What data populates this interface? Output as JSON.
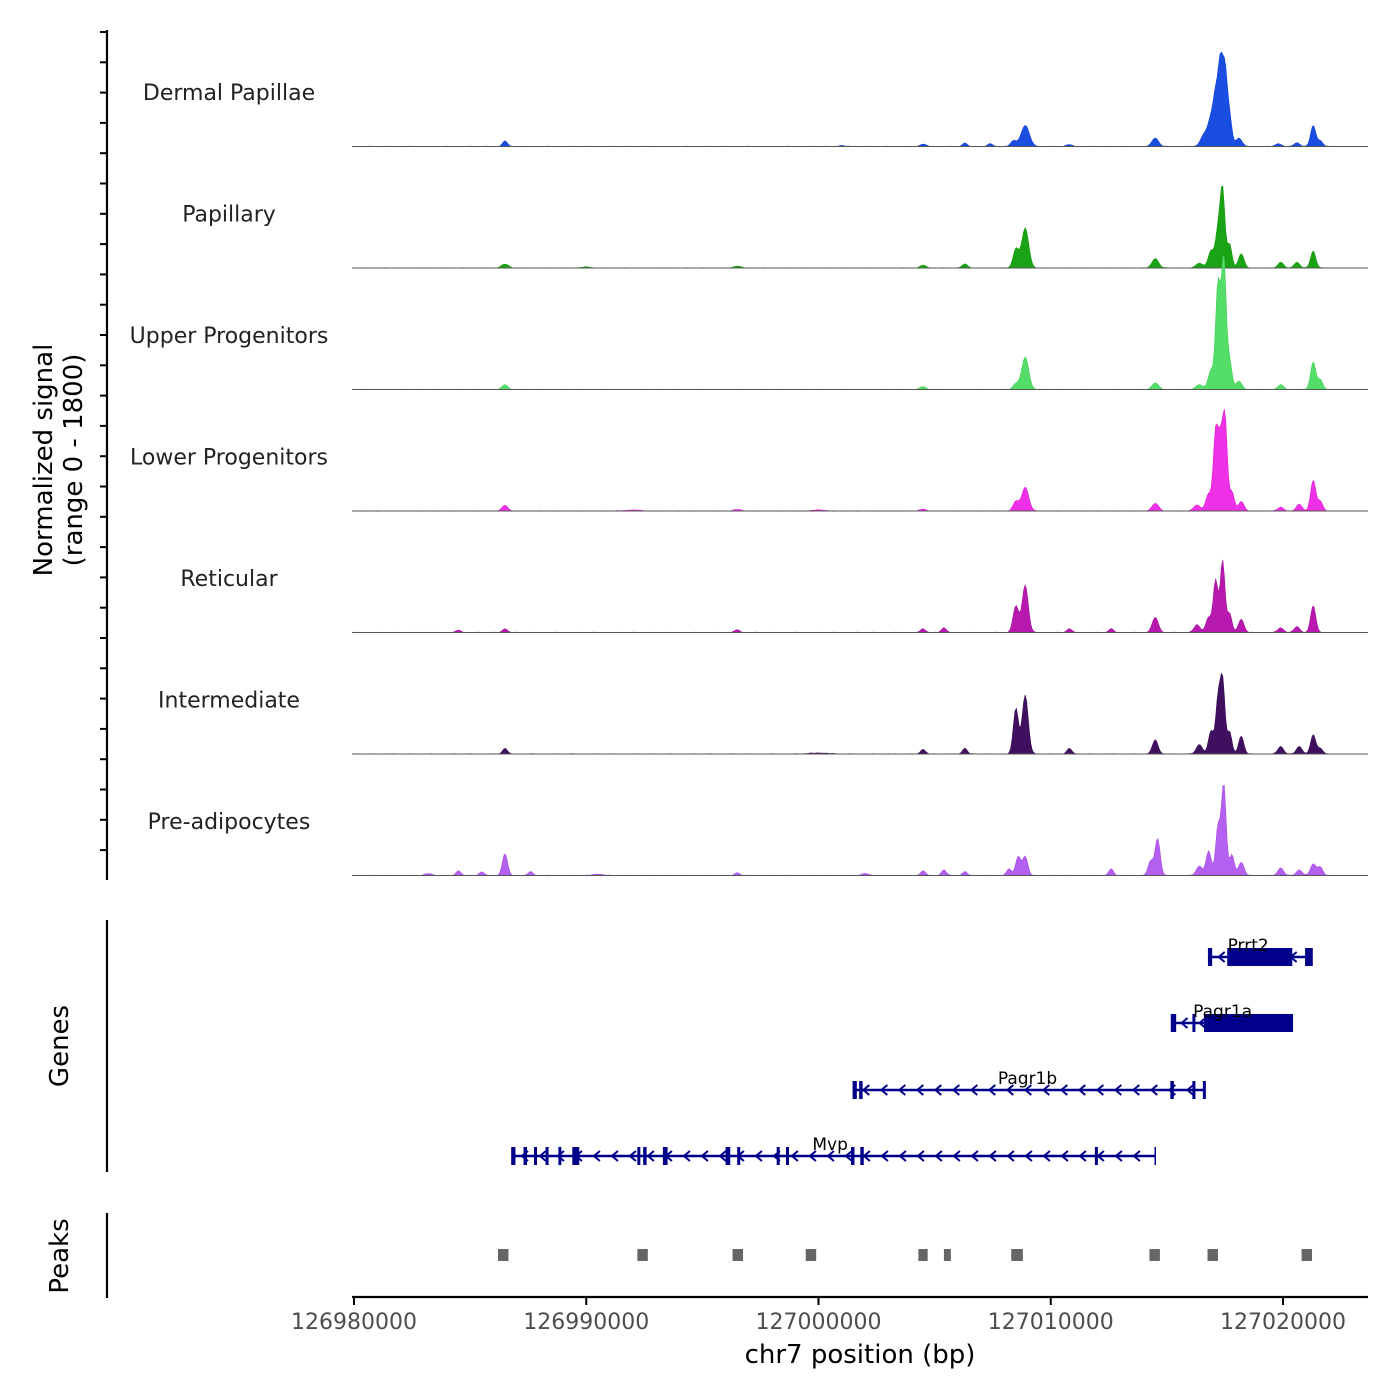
{
  "chart_data": {
    "type": "area",
    "title": "",
    "chromosome": "chr7",
    "xlabel": "chr7 position (bp)",
    "ylabel_line1": "Normalized signal",
    "ylabel_line2": "(range 0 - 1800)",
    "genes_label": "Genes",
    "peaks_label": "Peaks",
    "xlim": [
      126980000,
      127023500
    ],
    "ylim": [
      0,
      1800
    ],
    "x_ticks": [
      126980000,
      126990000,
      127000000,
      127010000,
      127020000
    ],
    "x_tick_labels": [
      "126980000",
      "126990000",
      "127000000",
      "127010000",
      "127020000"
    ],
    "tracks": [
      {
        "name": "Dermal Papillae",
        "color": "#1040d8",
        "fill": "#1a4ee0",
        "peaks": [
          [
            126986500,
            60,
            100
          ],
          [
            127001000,
            10,
            120
          ],
          [
            127004500,
            25,
            120
          ],
          [
            127006300,
            35,
            100
          ],
          [
            127007400,
            30,
            100
          ],
          [
            127008400,
            60,
            120
          ],
          [
            127008900,
            220,
            180
          ],
          [
            127010800,
            20,
            120
          ],
          [
            127014500,
            90,
            140
          ],
          [
            127016600,
            120,
            150
          ],
          [
            127016900,
            280,
            130
          ],
          [
            127017100,
            450,
            100
          ],
          [
            127017300,
            820,
            100
          ],
          [
            127017500,
            760,
            100
          ],
          [
            127017700,
            300,
            100
          ],
          [
            127018100,
            90,
            130
          ],
          [
            127019800,
            30,
            120
          ],
          [
            127020600,
            40,
            120
          ],
          [
            127021300,
            220,
            110
          ],
          [
            127021600,
            60,
            110
          ]
        ]
      },
      {
        "name": "Papillary",
        "color": "#159a10",
        "fill": "#1aa315",
        "peaks": [
          [
            126986500,
            40,
            150
          ],
          [
            126990000,
            10,
            200
          ],
          [
            126996500,
            20,
            150
          ],
          [
            127004500,
            30,
            120
          ],
          [
            127006300,
            40,
            120
          ],
          [
            127008500,
            200,
            120
          ],
          [
            127008900,
            420,
            150
          ],
          [
            127014500,
            100,
            140
          ],
          [
            127016400,
            50,
            150
          ],
          [
            127016900,
            180,
            120
          ],
          [
            127017200,
            380,
            110
          ],
          [
            127017400,
            800,
            100
          ],
          [
            127017700,
            250,
            100
          ],
          [
            127018200,
            150,
            120
          ],
          [
            127019900,
            60,
            120
          ],
          [
            127020600,
            60,
            120
          ],
          [
            127021300,
            180,
            110
          ]
        ]
      },
      {
        "name": "Upper Progenitors",
        "color": "#3fcf55",
        "fill": "#55dd6a",
        "peaks": [
          [
            126986500,
            50,
            120
          ],
          [
            127004500,
            30,
            120
          ],
          [
            127008500,
            60,
            120
          ],
          [
            127008900,
            340,
            150
          ],
          [
            127014500,
            70,
            140
          ],
          [
            127016400,
            50,
            150
          ],
          [
            127016900,
            200,
            120
          ],
          [
            127017200,
            1100,
            100
          ],
          [
            127017450,
            1380,
            100
          ],
          [
            127017700,
            300,
            100
          ],
          [
            127018100,
            90,
            120
          ],
          [
            127019900,
            50,
            120
          ],
          [
            127021300,
            290,
            110
          ],
          [
            127021600,
            100,
            110
          ]
        ]
      },
      {
        "name": "Lower Progenitors",
        "color": "#e010d8",
        "fill": "#ee30e6",
        "peaks": [
          [
            126986500,
            60,
            120
          ],
          [
            126992000,
            10,
            300
          ],
          [
            126996500,
            15,
            150
          ],
          [
            127000000,
            10,
            300
          ],
          [
            127004500,
            20,
            120
          ],
          [
            127008500,
            100,
            120
          ],
          [
            127008900,
            250,
            150
          ],
          [
            127014500,
            80,
            140
          ],
          [
            127016300,
            60,
            150
          ],
          [
            127016800,
            180,
            120
          ],
          [
            127017100,
            800,
            100
          ],
          [
            127017300,
            650,
            100
          ],
          [
            127017500,
            960,
            100
          ],
          [
            127017800,
            200,
            100
          ],
          [
            127018200,
            100,
            120
          ],
          [
            127019900,
            40,
            120
          ],
          [
            127020700,
            70,
            120
          ],
          [
            127021300,
            320,
            110
          ],
          [
            127021600,
            100,
            110
          ]
        ]
      },
      {
        "name": "Reticular",
        "color": "#a80fa0",
        "fill": "#b718ae",
        "peaks": [
          [
            126984500,
            25,
            100
          ],
          [
            126986500,
            40,
            100
          ],
          [
            126996500,
            30,
            100
          ],
          [
            127004500,
            40,
            100
          ],
          [
            127005400,
            50,
            100
          ],
          [
            127008500,
            280,
            120
          ],
          [
            127008900,
            500,
            130
          ],
          [
            127010800,
            40,
            100
          ],
          [
            127012600,
            40,
            100
          ],
          [
            127014500,
            160,
            130
          ],
          [
            127016300,
            80,
            130
          ],
          [
            127016800,
            160,
            120
          ],
          [
            127017100,
            550,
            100
          ],
          [
            127017400,
            760,
            100
          ],
          [
            127017700,
            200,
            100
          ],
          [
            127018200,
            140,
            120
          ],
          [
            127019900,
            50,
            120
          ],
          [
            127020600,
            60,
            120
          ],
          [
            127021300,
            280,
            110
          ]
        ]
      },
      {
        "name": "Intermediate",
        "color": "#3c0d54",
        "fill": "#401060",
        "peaks": [
          [
            126986500,
            60,
            100
          ],
          [
            127000000,
            10,
            400
          ],
          [
            127004500,
            50,
            100
          ],
          [
            127006300,
            60,
            100
          ],
          [
            127008500,
            480,
            110
          ],
          [
            127008900,
            620,
            130
          ],
          [
            127010800,
            60,
            100
          ],
          [
            127014500,
            150,
            120
          ],
          [
            127016400,
            100,
            130
          ],
          [
            127016900,
            240,
            110
          ],
          [
            127017200,
            550,
            100
          ],
          [
            127017400,
            760,
            100
          ],
          [
            127017700,
            230,
            100
          ],
          [
            127018200,
            190,
            110
          ],
          [
            127019900,
            80,
            120
          ],
          [
            127020700,
            80,
            120
          ],
          [
            127021300,
            200,
            110
          ],
          [
            127021600,
            60,
            110
          ]
        ]
      },
      {
        "name": "Pre-adipocytes",
        "color": "#a84fe8",
        "fill": "#b35ff0",
        "peaks": [
          [
            126983200,
            20,
            150
          ],
          [
            126984500,
            50,
            100
          ],
          [
            126985500,
            40,
            100
          ],
          [
            126986500,
            230,
            110
          ],
          [
            126987600,
            40,
            100
          ],
          [
            126990500,
            15,
            200
          ],
          [
            126996500,
            30,
            100
          ],
          [
            127002000,
            20,
            150
          ],
          [
            127004500,
            50,
            100
          ],
          [
            127005400,
            60,
            100
          ],
          [
            127006300,
            40,
            100
          ],
          [
            127008200,
            70,
            100
          ],
          [
            127008600,
            200,
            110
          ],
          [
            127008900,
            200,
            110
          ],
          [
            127012600,
            70,
            100
          ],
          [
            127014300,
            150,
            110
          ],
          [
            127014600,
            390,
            110
          ],
          [
            127016400,
            100,
            130
          ],
          [
            127016800,
            260,
            110
          ],
          [
            127017200,
            510,
            100
          ],
          [
            127017450,
            960,
            100
          ],
          [
            127017800,
            220,
            100
          ],
          [
            127018200,
            140,
            120
          ],
          [
            127019900,
            80,
            120
          ],
          [
            127020700,
            60,
            120
          ],
          [
            127021300,
            120,
            120
          ],
          [
            127021600,
            90,
            110
          ]
        ]
      }
    ],
    "genes": [
      {
        "name": "Prrt2",
        "strand": "-",
        "start": 127016800,
        "end": 127021250,
        "label_x": 127018500,
        "exons": [
          [
            127016800,
            127016950
          ],
          [
            127017600,
            127020400
          ],
          [
            127020950,
            127021250
          ]
        ]
      },
      {
        "name": "Pagr1a",
        "strand": "-",
        "start": 127015200,
        "end": 127020400,
        "label_x": 127017400,
        "exons": [
          [
            127015200,
            127015400
          ],
          [
            127016100,
            127016150
          ],
          [
            127016600,
            127020400
          ]
        ]
      },
      {
        "name": "Pagr1b",
        "strand": "-",
        "start": 127001500,
        "end": 127016600,
        "label_x": 127009000,
        "exons": [
          [
            127001500,
            127001650
          ],
          [
            127001750,
            127001900
          ],
          [
            127015150,
            127015300
          ],
          [
            127016100,
            127016150
          ],
          [
            127016550,
            127016600
          ]
        ]
      },
      {
        "name": "Mvp",
        "strand": "-",
        "start": 126986800,
        "end": 127014500,
        "label_x": 127000500,
        "exons": [
          [
            126986800,
            126986950
          ],
          [
            126987300,
            126987450
          ],
          [
            126987750,
            126987800
          ],
          [
            126988250,
            126988350
          ],
          [
            126988800,
            126988900
          ],
          [
            126989400,
            126989700
          ],
          [
            126992200,
            126992300
          ],
          [
            126992450,
            126992600
          ],
          [
            126993300,
            126993500
          ],
          [
            126996000,
            126996200
          ],
          [
            126996500,
            126996550
          ],
          [
            126998200,
            126998300
          ],
          [
            126998600,
            126998700
          ],
          [
            127001400,
            127001550
          ],
          [
            127001800,
            127001950
          ],
          [
            127011900,
            127011950
          ]
        ]
      }
    ],
    "peaks": [
      [
        126986200,
        126986650
      ],
      [
        126992200,
        126992650
      ],
      [
        126996300,
        126996750
      ],
      [
        126999450,
        126999900
      ],
      [
        127004300,
        127004700
      ],
      [
        127005400,
        127005700
      ],
      [
        127008300,
        127008800
      ],
      [
        127014250,
        127014700
      ],
      [
        127016750,
        127017200
      ],
      [
        127020800,
        127021250
      ]
    ]
  }
}
